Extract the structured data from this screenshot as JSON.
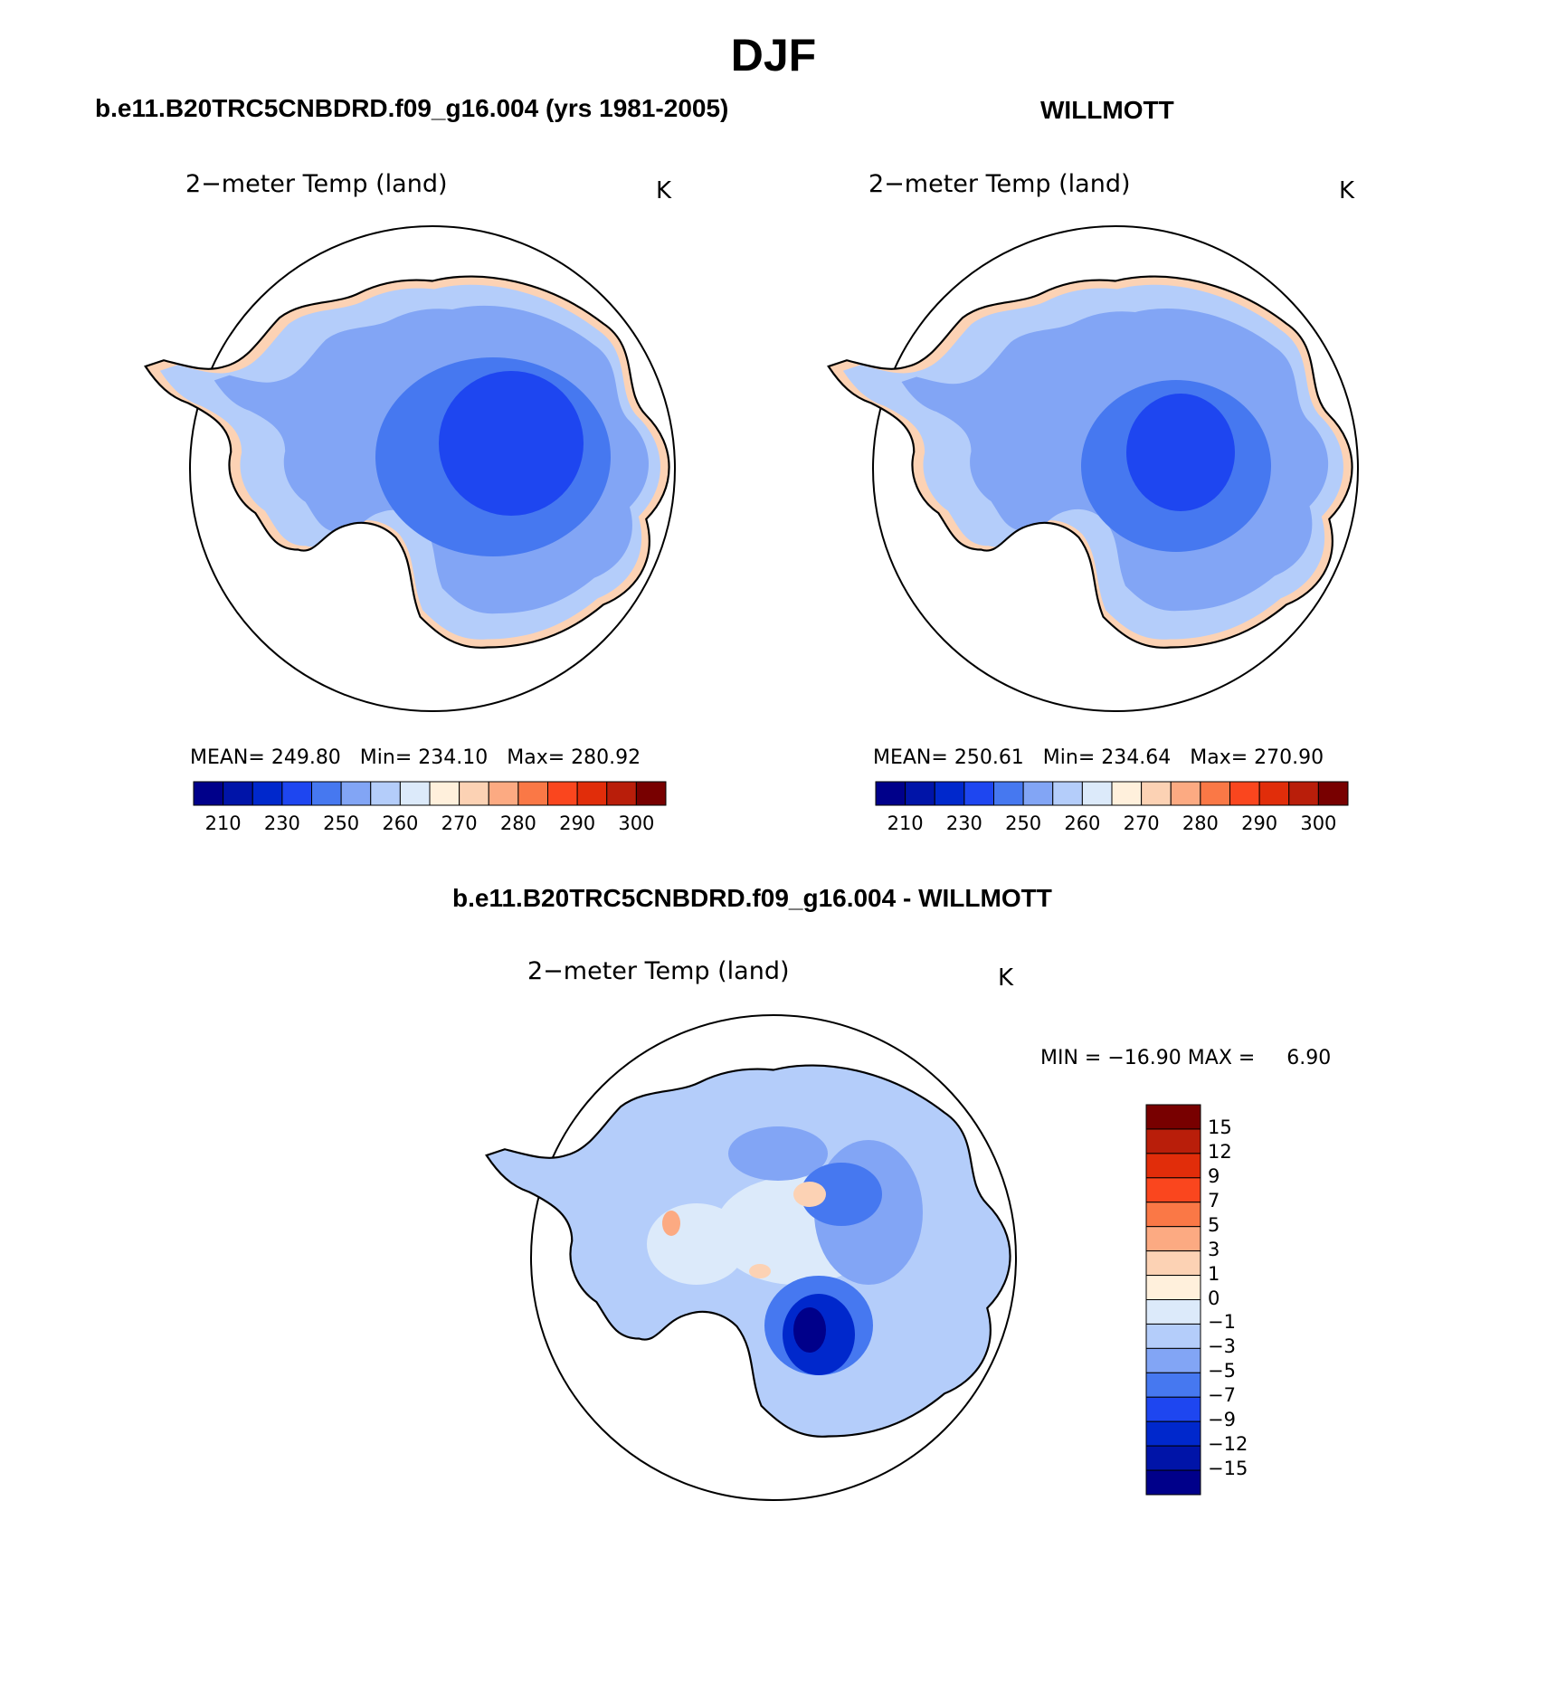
{
  "title": "DJF",
  "panels": [
    {
      "header": "b.e11.B20TRC5CNBDRD.f09_g16.004 (yrs 1981-2005)",
      "variable": "2−meter Temp (land)",
      "units": "K",
      "mean_label": "MEAN=",
      "mean": "249.80",
      "min_label": "Min=",
      "min": "234.10",
      "max_label": "Max=",
      "max": "280.92"
    },
    {
      "header": "WILLMOTT",
      "variable": "2−meter Temp (land)",
      "units": "K",
      "mean_label": "MEAN=",
      "mean": "250.61",
      "min_label": "Min=",
      "min": "234.64",
      "max_label": "Max=",
      "max": "270.90"
    }
  ],
  "diff_panel": {
    "header": "b.e11.B20TRC5CNBDRD.f09_g16.004 - WILLMOTT",
    "variable": "2−meter Temp (land)",
    "units": "K",
    "min_label": "MIN =",
    "min": "−16.90",
    "max_label": "MAX =",
    "max": "6.90"
  },
  "colorbar_abs": {
    "colors": [
      "#00008a",
      "#0014a8",
      "#0028cc",
      "#1e46f0",
      "#4678f0",
      "#82a5f5",
      "#b4cdfa",
      "#dceafa",
      "#fff0dc",
      "#fcd2b4",
      "#fcaa82",
      "#fa7846",
      "#fa461e",
      "#e12d0a",
      "#b91e0a",
      "#780000"
    ],
    "tick_labels": [
      "210",
      "230",
      "250",
      "260",
      "270",
      "280",
      "290",
      "300"
    ]
  },
  "colorbar_diff": {
    "colors": [
      "#780000",
      "#b91e0a",
      "#e12d0a",
      "#fa461e",
      "#fa7846",
      "#fcaa82",
      "#fcd2b4",
      "#fff0dc",
      "#dceafa",
      "#b4cdfa",
      "#82a5f5",
      "#4678f0",
      "#1e46f0",
      "#0028cc",
      "#0014a8",
      "#00008a"
    ],
    "tick_labels": [
      "15",
      "12",
      "9",
      "7",
      "5",
      "3",
      "1",
      "0",
      "−1",
      "−3",
      "−5",
      "−7",
      "−9",
      "−12",
      "−15"
    ]
  },
  "map_colors": {
    "edge": "#fcd2b4",
    "coast_abs": "#b4cdfa",
    "mid_abs": "#82a5f5",
    "inner_abs": "#4678f0",
    "core_abs": "#1e46f0",
    "diff_base": "#b4cdfa",
    "diff_light": "#dceafa",
    "diff_mid": "#82a5f5",
    "diff_blue": "#4678f0",
    "diff_deep": "#0028cc",
    "diff_core": "#00008a",
    "diff_warm": "#fcd2b4",
    "diff_warm2": "#fcaa82"
  }
}
